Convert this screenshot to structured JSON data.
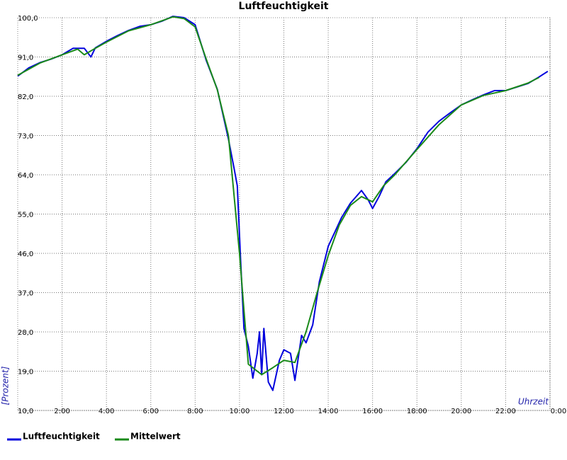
{
  "chart_data": {
    "type": "line",
    "title": "Luftfeuchtigkeit",
    "ylabel": "[Prozent]",
    "xlabel": "Uhrzeit",
    "xlim": [
      0,
      24
    ],
    "ylim": [
      10,
      100
    ],
    "xticks": [
      {
        "value": 2,
        "label": "2:00"
      },
      {
        "value": 4,
        "label": "4:00"
      },
      {
        "value": 6,
        "label": "6:00"
      },
      {
        "value": 8,
        "label": "8:00"
      },
      {
        "value": 10,
        "label": "10:00"
      },
      {
        "value": 12,
        "label": "12:00"
      },
      {
        "value": 14,
        "label": "14:00"
      },
      {
        "value": 16,
        "label": "16:00"
      },
      {
        "value": 18,
        "label": "18:00"
      },
      {
        "value": 20,
        "label": "20:00"
      },
      {
        "value": 22,
        "label": "22:00"
      },
      {
        "value": 24,
        "label": "0:00"
      }
    ],
    "yticks": [
      {
        "value": 10,
        "label": "10,0"
      },
      {
        "value": 19,
        "label": "19,0"
      },
      {
        "value": 28,
        "label": "28,0"
      },
      {
        "value": 37,
        "label": "37,0"
      },
      {
        "value": 46,
        "label": "46,0"
      },
      {
        "value": 55,
        "label": "55,0"
      },
      {
        "value": 64,
        "label": "64,0"
      },
      {
        "value": 73,
        "label": "73,0"
      },
      {
        "value": 82,
        "label": "82,0"
      },
      {
        "value": 91,
        "label": "91,0"
      },
      {
        "value": 100,
        "label": "100,0"
      }
    ],
    "grid": true,
    "series": [
      {
        "name": "Luftfeuchtigkeit",
        "color": "#0000dd",
        "x": [
          0,
          0.5,
          1,
          1.5,
          2,
          2.5,
          3,
          3.3,
          3.5,
          4,
          4.5,
          5,
          5.5,
          6,
          6.5,
          7,
          7.5,
          8,
          8.5,
          9,
          9.5,
          9.75,
          9.9,
          10.05,
          10.2,
          10.4,
          10.6,
          10.8,
          10.9,
          11,
          11.1,
          11.3,
          11.5,
          11.8,
          12,
          12.3,
          12.5,
          12.8,
          13,
          13.3,
          13.6,
          14,
          14.3,
          14.6,
          15,
          15.5,
          15.8,
          16,
          16.3,
          16.6,
          17,
          17.5,
          18,
          18.5,
          19,
          19.5,
          20,
          20.5,
          21,
          21.5,
          22,
          22.5,
          23,
          23.5,
          23.9
        ],
        "values": [
          86.6,
          88.5,
          89.7,
          90.5,
          91.5,
          93.0,
          93.0,
          91.0,
          93.1,
          94.6,
          95.9,
          97.1,
          98.0,
          98.4,
          99.2,
          100.3,
          100.0,
          98.4,
          90.2,
          83.6,
          72.2,
          65.6,
          61.5,
          44.4,
          28.8,
          24.7,
          17.4,
          23.1,
          28.0,
          18.2,
          28.8,
          16.5,
          14.6,
          21.5,
          23.9,
          23.1,
          16.9,
          27.2,
          25.5,
          29.6,
          39.5,
          47.6,
          50.9,
          54.2,
          57.5,
          60.4,
          58.3,
          56.3,
          59.1,
          62.4,
          64.3,
          66.8,
          70.0,
          73.8,
          76.3,
          78.2,
          80.0,
          81.2,
          82.3,
          83.3,
          83.3,
          84.1,
          84.9,
          86.4,
          87.7
        ]
      },
      {
        "name": "Mittelwert",
        "color": "#1a8a1a",
        "x": [
          0,
          1,
          2,
          2.7,
          3,
          3.5,
          4,
          5,
          6,
          7,
          7.5,
          8,
          8.5,
          9,
          9.5,
          10,
          10.2,
          10.4,
          11,
          11.5,
          12,
          12.5,
          13,
          13.5,
          14,
          14.5,
          15,
          15.5,
          16,
          16.5,
          17,
          18,
          19,
          20,
          21,
          22,
          23,
          23.5
        ],
        "values": [
          86.8,
          89.6,
          91.5,
          92.8,
          91.5,
          93.0,
          94.4,
          97.0,
          98.4,
          100.2,
          99.8,
          97.9,
          90.5,
          83.5,
          73.0,
          46.0,
          33.0,
          20.6,
          18.2,
          19.8,
          21.5,
          21.0,
          28.0,
          37.0,
          45.5,
          52.5,
          57.0,
          59.0,
          57.8,
          61.5,
          64.0,
          69.8,
          75.5,
          80.0,
          82.2,
          83.3,
          85.0,
          86.3
        ]
      }
    ]
  }
}
